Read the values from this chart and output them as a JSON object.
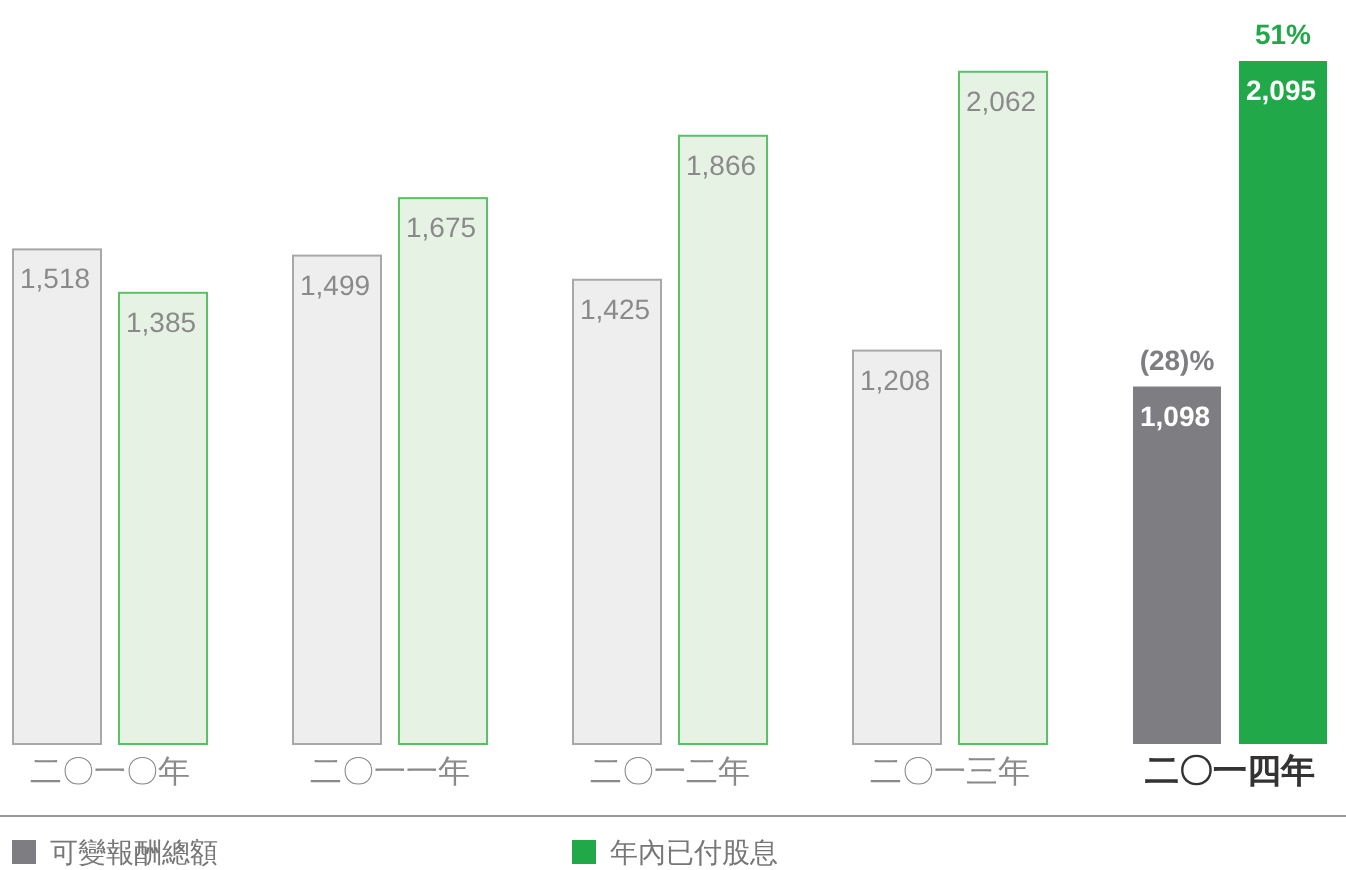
{
  "chart_data": {
    "type": "bar",
    "legend": "bottom left",
    "categories": [
      "二〇一〇年",
      "二〇一一年",
      "二〇一二年",
      "二〇一三年",
      "二〇一四年"
    ],
    "series": [
      {
        "name": "可變報酬總額",
        "color": "#7e7d82",
        "values": [
          1518,
          1499,
          1425,
          1208,
          1098
        ],
        "value_labels": [
          "1,518",
          "1,499",
          "1,425",
          "1,208",
          "1,098"
        ],
        "colors": [
          "#eeeeee",
          "#eeeeee",
          "#eeeeee",
          "#eeeeee",
          "#7e7d82"
        ]
      },
      {
        "name": "年內已付股息",
        "color": "#21a849",
        "values": [
          1385,
          1675,
          1866,
          2062,
          2095
        ],
        "value_labels": [
          "1,385",
          "1,675",
          "1,866",
          "2,062",
          "2,095"
        ],
        "colors": [
          "#e6f2e3",
          "#e6f2e3",
          "#e6f2e3",
          "#e6f2e3",
          "#21a849"
        ]
      }
    ],
    "annotations": [
      {
        "text": "(28)%",
        "x": "二〇一四年",
        "y": 1098
      },
      {
        "text": "51%",
        "x": "二〇一四年",
        "y": 2095
      }
    ]
  }
}
